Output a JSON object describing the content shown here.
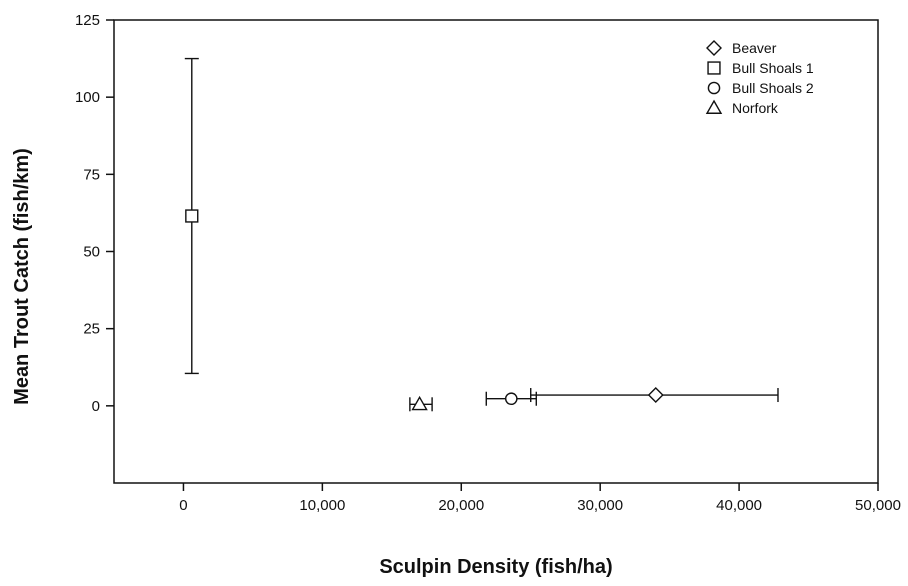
{
  "chart_data": {
    "type": "scatter",
    "title": "",
    "xlabel": "Sculpin Density (fish/ha)",
    "ylabel": "Mean Trout Catch (fish/km)",
    "xlim": [
      -5000,
      50000
    ],
    "ylim": [
      -25,
      125
    ],
    "x_ticks": [
      0,
      10000,
      20000,
      30000,
      40000,
      50000
    ],
    "x_tick_labels": [
      "0",
      "10,000",
      "20,000",
      "30,000",
      "40,000",
      "50,000"
    ],
    "y_ticks": [
      0,
      25,
      50,
      75,
      100,
      125
    ],
    "y_tick_labels": [
      "0",
      "25",
      "50",
      "75",
      "100",
      "125"
    ],
    "grid": false,
    "legend_position": "top-right",
    "series": [
      {
        "name": "Beaver",
        "marker": "diamond",
        "x": 34000,
        "y": 3.5,
        "x_err_low": 25000,
        "x_err_high": 42800,
        "y_err_low": 3.5,
        "y_err_high": 3.5
      },
      {
        "name": "Bull Shoals 1",
        "marker": "square",
        "x": 600,
        "y": 61.5,
        "x_err_low": 600,
        "x_err_high": 600,
        "y_err_low": 10.5,
        "y_err_high": 112.5
      },
      {
        "name": "Bull Shoals 2",
        "marker": "circle",
        "x": 23600,
        "y": 2.3,
        "x_err_low": 21800,
        "x_err_high": 25400,
        "y_err_low": 2.3,
        "y_err_high": 2.3
      },
      {
        "name": "Norfork",
        "marker": "triangle",
        "x": 17000,
        "y": 0.5,
        "x_err_low": 16300,
        "x_err_high": 17900,
        "y_err_low": 0.5,
        "y_err_high": 0.5
      }
    ]
  }
}
